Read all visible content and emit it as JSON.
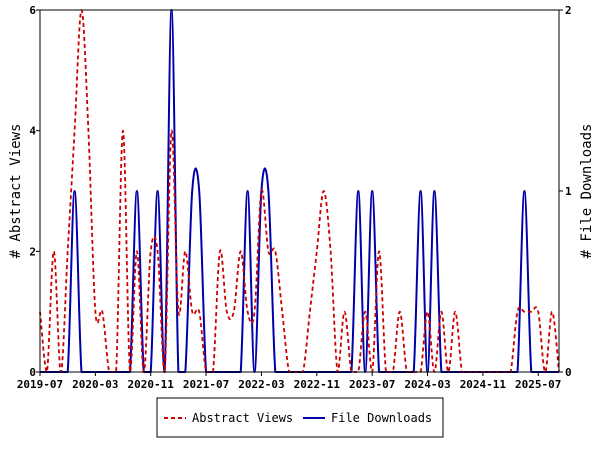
{
  "chart_data": {
    "type": "line",
    "title": "",
    "x_tick_labels": [
      "2019-07",
      "2020-03",
      "2020-11",
      "2021-07",
      "2022-03",
      "2022-11",
      "2023-07",
      "2024-03",
      "2024-11",
      "2025-07"
    ],
    "left_axis": {
      "label": "# Abstract Views",
      "range": [
        0,
        6
      ],
      "ticks": [
        "0",
        "2",
        "4",
        "6"
      ]
    },
    "right_axis": {
      "label": "# File Downloads",
      "range": [
        0,
        2
      ],
      "ticks": [
        "0",
        "1",
        "2"
      ]
    },
    "grid": false,
    "legend_position": "bottom",
    "series": [
      {
        "name": "Abstract Views",
        "axis": "left",
        "style": "dashed",
        "color": "#cc0000",
        "points": [
          [
            "2019-07",
            1
          ],
          [
            "2019-08",
            0
          ],
          [
            "2019-09",
            2
          ],
          [
            "2019-10",
            0
          ],
          [
            "2019-11",
            2
          ],
          [
            "2019-12",
            4
          ],
          [
            "2020-01",
            6
          ],
          [
            "2020-02",
            4
          ],
          [
            "2020-03",
            1
          ],
          [
            "2020-04",
            1
          ],
          [
            "2020-05",
            0
          ],
          [
            "2020-06",
            0
          ],
          [
            "2020-07",
            4
          ],
          [
            "2020-08",
            0
          ],
          [
            "2020-09",
            2
          ],
          [
            "2020-10",
            0
          ],
          [
            "2020-11",
            2
          ],
          [
            "2020-12",
            2
          ],
          [
            "2021-01",
            0
          ],
          [
            "2021-02",
            4
          ],
          [
            "2021-03",
            1
          ],
          [
            "2021-04",
            2
          ],
          [
            "2021-05",
            1
          ],
          [
            "2021-06",
            1
          ],
          [
            "2021-07",
            0
          ],
          [
            "2021-08",
            0
          ],
          [
            "2021-09",
            2
          ],
          [
            "2021-10",
            1
          ],
          [
            "2021-11",
            1
          ],
          [
            "2021-12",
            2
          ],
          [
            "2022-01",
            1
          ],
          [
            "2022-02",
            1
          ],
          [
            "2022-03",
            3
          ],
          [
            "2022-04",
            2
          ],
          [
            "2022-05",
            2
          ],
          [
            "2022-06",
            1
          ],
          [
            "2022-07",
            0
          ],
          [
            "2022-08",
            0
          ],
          [
            "2022-09",
            0
          ],
          [
            "2022-10",
            1
          ],
          [
            "2022-11",
            2
          ],
          [
            "2022-12",
            3
          ],
          [
            "2023-01",
            2
          ],
          [
            "2023-02",
            0
          ],
          [
            "2023-03",
            1
          ],
          [
            "2023-04",
            0
          ],
          [
            "2023-05",
            0
          ],
          [
            "2023-06",
            1
          ],
          [
            "2023-07",
            0
          ],
          [
            "2023-08",
            2
          ],
          [
            "2023-09",
            0
          ],
          [
            "2023-10",
            0
          ],
          [
            "2023-11",
            1
          ],
          [
            "2023-12",
            0
          ],
          [
            "2024-01",
            0
          ],
          [
            "2024-02",
            0
          ],
          [
            "2024-03",
            1
          ],
          [
            "2024-04",
            0
          ],
          [
            "2024-05",
            1
          ],
          [
            "2024-06",
            0
          ],
          [
            "2024-07",
            1
          ],
          [
            "2024-08",
            0
          ],
          [
            "2024-09",
            0
          ],
          [
            "2024-10",
            0
          ],
          [
            "2024-11",
            0
          ],
          [
            "2024-12",
            0
          ],
          [
            "2025-01",
            0
          ],
          [
            "2025-02",
            0
          ],
          [
            "2025-03",
            0
          ],
          [
            "2025-04",
            1
          ],
          [
            "2025-05",
            1
          ],
          [
            "2025-06",
            1
          ],
          [
            "2025-07",
            1
          ],
          [
            "2025-08",
            0
          ],
          [
            "2025-09",
            1
          ],
          [
            "2025-10",
            0
          ]
        ]
      },
      {
        "name": "File Downloads",
        "axis": "right",
        "style": "solid",
        "color": "#0000aa",
        "points": [
          [
            "2019-07",
            0
          ],
          [
            "2019-08",
            0
          ],
          [
            "2019-09",
            0
          ],
          [
            "2019-10",
            0
          ],
          [
            "2019-11",
            0
          ],
          [
            "2019-12",
            1
          ],
          [
            "2020-01",
            0
          ],
          [
            "2020-02",
            0
          ],
          [
            "2020-03",
            0
          ],
          [
            "2020-04",
            0
          ],
          [
            "2020-05",
            0
          ],
          [
            "2020-06",
            0
          ],
          [
            "2020-07",
            0
          ],
          [
            "2020-08",
            0
          ],
          [
            "2020-09",
            1
          ],
          [
            "2020-10",
            0
          ],
          [
            "2020-11",
            0
          ],
          [
            "2020-12",
            1
          ],
          [
            "2021-01",
            0
          ],
          [
            "2021-02",
            2
          ],
          [
            "2021-03",
            0
          ],
          [
            "2021-04",
            0
          ],
          [
            "2021-05",
            1
          ],
          [
            "2021-06",
            1
          ],
          [
            "2021-07",
            0
          ],
          [
            "2021-08",
            0
          ],
          [
            "2021-09",
            0
          ],
          [
            "2021-10",
            0
          ],
          [
            "2021-11",
            0
          ],
          [
            "2021-12",
            0
          ],
          [
            "2022-01",
            1
          ],
          [
            "2022-02",
            0
          ],
          [
            "2022-03",
            1
          ],
          [
            "2022-04",
            1
          ],
          [
            "2022-05",
            0
          ],
          [
            "2022-06",
            0
          ],
          [
            "2022-07",
            0
          ],
          [
            "2022-08",
            0
          ],
          [
            "2022-09",
            0
          ],
          [
            "2022-10",
            0
          ],
          [
            "2022-11",
            0
          ],
          [
            "2022-12",
            0
          ],
          [
            "2023-01",
            0
          ],
          [
            "2023-02",
            0
          ],
          [
            "2023-03",
            0
          ],
          [
            "2023-04",
            0
          ],
          [
            "2023-05",
            1
          ],
          [
            "2023-06",
            0
          ],
          [
            "2023-07",
            1
          ],
          [
            "2023-08",
            0
          ],
          [
            "2023-09",
            0
          ],
          [
            "2023-10",
            0
          ],
          [
            "2023-11",
            0
          ],
          [
            "2023-12",
            0
          ],
          [
            "2024-01",
            0
          ],
          [
            "2024-02",
            1
          ],
          [
            "2024-03",
            0
          ],
          [
            "2024-04",
            1
          ],
          [
            "2024-05",
            0
          ],
          [
            "2024-06",
            0
          ],
          [
            "2024-07",
            0
          ],
          [
            "2024-08",
            0
          ],
          [
            "2024-09",
            0
          ],
          [
            "2024-10",
            0
          ],
          [
            "2024-11",
            0
          ],
          [
            "2024-12",
            0
          ],
          [
            "2025-01",
            0
          ],
          [
            "2025-02",
            0
          ],
          [
            "2025-03",
            0
          ],
          [
            "2025-04",
            0
          ],
          [
            "2025-05",
            1
          ],
          [
            "2025-06",
            0
          ],
          [
            "2025-07",
            0
          ],
          [
            "2025-08",
            0
          ],
          [
            "2025-09",
            0
          ],
          [
            "2025-10",
            0
          ]
        ]
      }
    ]
  }
}
